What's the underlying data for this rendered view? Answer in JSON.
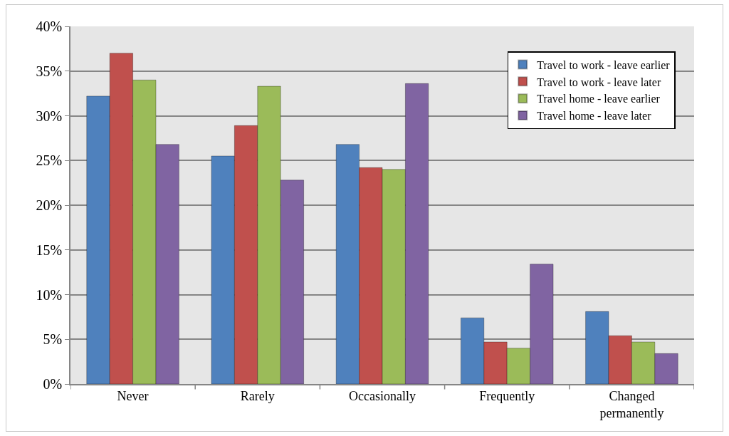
{
  "chart_data": {
    "type": "bar",
    "categories": [
      "Never",
      "Rarely",
      "Occasionally",
      "Frequently",
      "Changed\npermanently"
    ],
    "series": [
      {
        "name": "Travel to work - leave earlier",
        "color": "#4f81bd",
        "values": [
          32.2,
          25.5,
          26.8,
          7.4,
          8.1
        ]
      },
      {
        "name": "Travel to work - leave later",
        "color": "#c0504d",
        "values": [
          37.0,
          28.9,
          24.2,
          4.7,
          5.4
        ]
      },
      {
        "name": "Travel home - leave earlier",
        "color": "#9bbb59",
        "values": [
          34.0,
          33.3,
          24.0,
          4.0,
          4.7
        ]
      },
      {
        "name": "Travel home - leave later",
        "color": "#8064a2",
        "values": [
          26.8,
          22.8,
          33.6,
          13.4,
          3.4
        ]
      }
    ],
    "ylim": [
      0,
      40
    ],
    "yticks": [
      {
        "value": 0,
        "label": "0%"
      },
      {
        "value": 5,
        "label": "5%"
      },
      {
        "value": 10,
        "label": "10%"
      },
      {
        "value": 15,
        "label": "15%"
      },
      {
        "value": 20,
        "label": "20%"
      },
      {
        "value": 25,
        "label": "25%"
      },
      {
        "value": 30,
        "label": "30%"
      },
      {
        "value": 35,
        "label": "35%"
      },
      {
        "value": 40,
        "label": "40%"
      }
    ],
    "grid": "y",
    "legend": "top right"
  }
}
